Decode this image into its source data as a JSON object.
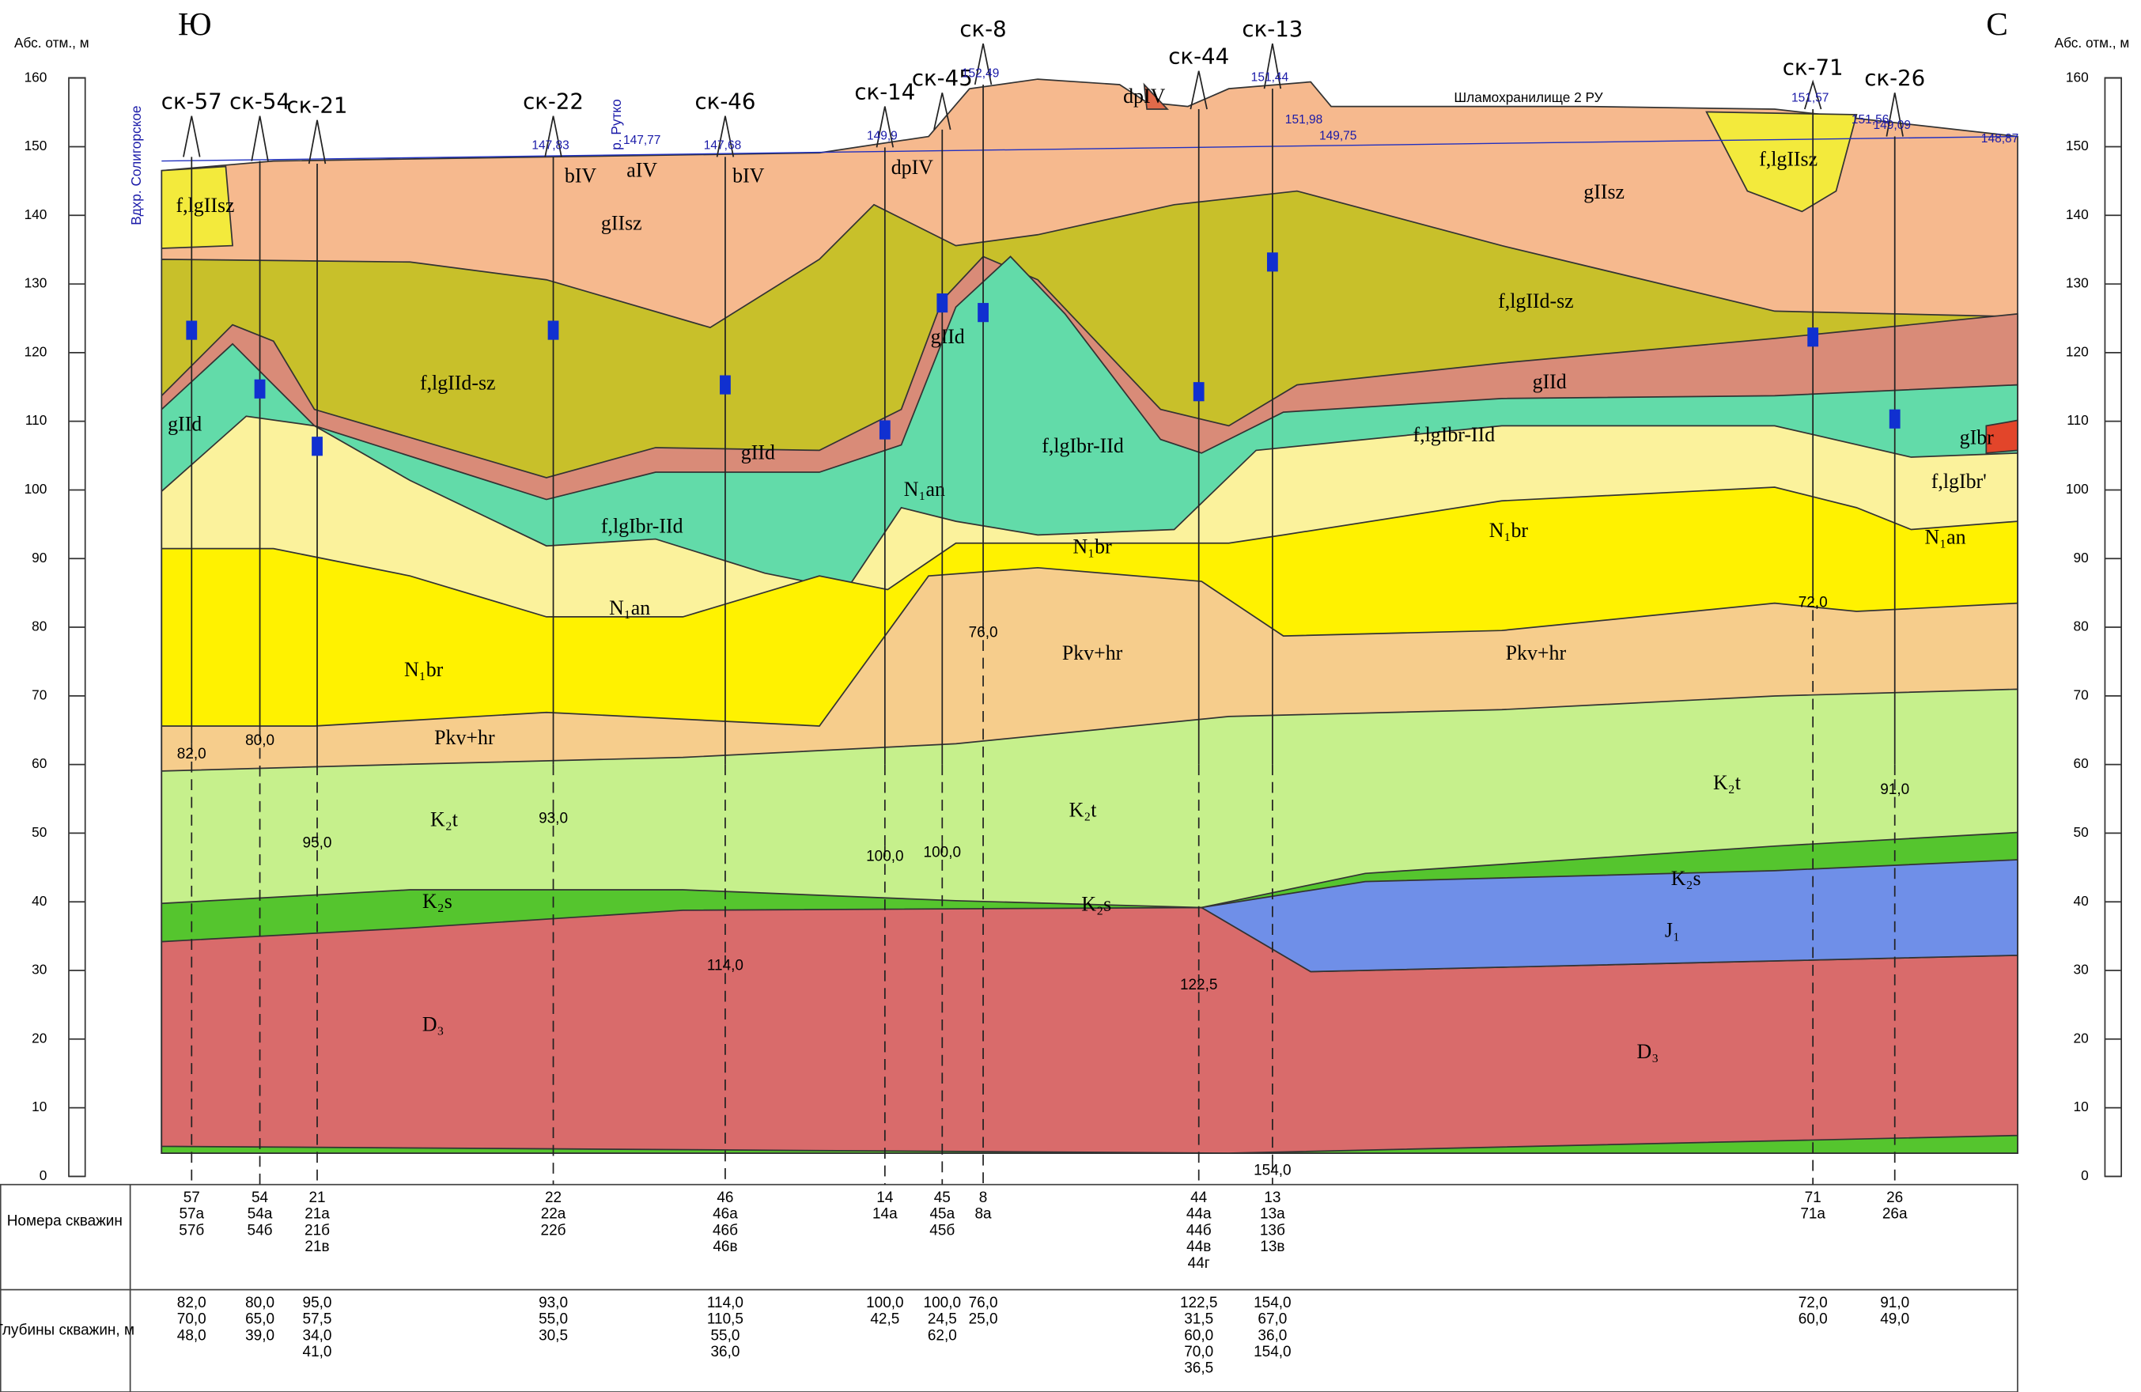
{
  "header": {
    "south": "Ю",
    "north": "С",
    "axis_left": "Абс. отм., м",
    "axis_right": "Абс. отм., м",
    "reservoir": "Шламохранилище 2 РУ",
    "river": "р. Рутко",
    "lake": "Вдхр. Солигорское"
  },
  "axis": {
    "ticks": [
      0,
      10,
      20,
      30,
      40,
      50,
      60,
      70,
      80,
      90,
      100,
      110,
      120,
      130,
      140,
      150,
      160
    ]
  },
  "boreholes": [
    {
      "name": "ск-57",
      "depth": "82,0"
    },
    {
      "name": "ск-54",
      "depth": "80,0"
    },
    {
      "name": "ск-21",
      "depth": "95,0"
    },
    {
      "name": "ск-22",
      "depth": "93,0",
      "elevation": "147,83"
    },
    {
      "name": "ск-46",
      "depth": "114,0",
      "elevation": "147,68"
    },
    {
      "name": "ск-14",
      "depth": "100,0",
      "elevation": "149,9"
    },
    {
      "name": "ск-45",
      "depth": "100,0"
    },
    {
      "name": "ск-8",
      "depth": "76,0",
      "elevation": "152,49"
    },
    {
      "name": "ск-44",
      "depth": "122,5"
    },
    {
      "name": "ск-13",
      "depth": "154,0",
      "elevation": "151,44"
    },
    {
      "name": "ск-71",
      "depth": "72,0",
      "elevation": "151,57"
    },
    {
      "name": "ск-26",
      "depth": "91,0",
      "elevation": "149,09"
    }
  ],
  "extra_elevations": [
    "147,77",
    "151,98",
    "149,75",
    "151,56",
    "148,87"
  ],
  "layers": [
    {
      "label": "gIIsz"
    },
    {
      "label": "f,lgIIsz"
    },
    {
      "label": "f,lgIId-sz"
    },
    {
      "label": "gIId"
    },
    {
      "label": "f,lgIbr-IId"
    },
    {
      "label": "N₁an"
    },
    {
      "label": "N₁br"
    },
    {
      "label": "Pkv+hr"
    },
    {
      "label": "K₂t"
    },
    {
      "label": "K₂s"
    },
    {
      "label": "J₁"
    },
    {
      "label": "D₃"
    },
    {
      "label": "dpIV"
    },
    {
      "label": "bIV"
    },
    {
      "label": "aIV"
    },
    {
      "label": "f,lgIbr'"
    },
    {
      "label": "gIbr"
    }
  ],
  "table": {
    "row_headers": [
      "Номера скважин",
      "Глубины скважин, м"
    ],
    "columns": [
      {
        "numbers": [
          "57",
          "57а",
          "57б"
        ],
        "depths": [
          "82,0",
          "70,0",
          "48,0"
        ]
      },
      {
        "numbers": [
          "54",
          "54а",
          "54б"
        ],
        "depths": [
          "80,0",
          "65,0",
          "39,0"
        ]
      },
      {
        "numbers": [
          "21",
          "21а",
          "21б",
          "21в"
        ],
        "depths": [
          "95,0",
          "57,5",
          "34,0",
          "41,0"
        ]
      },
      {
        "numbers": [
          "22",
          "22а",
          "22б"
        ],
        "depths": [
          "93,0",
          "55,0",
          "30,5"
        ]
      },
      {
        "numbers": [
          "46",
          "46а",
          "46б",
          "46в"
        ],
        "depths": [
          "114,0",
          "110,5",
          "55,0",
          "36,0"
        ]
      },
      {
        "numbers": [
          "14",
          "14а"
        ],
        "depths": [
          "100,0",
          "42,5"
        ]
      },
      {
        "numbers": [
          "45",
          "45а",
          "45б"
        ],
        "depths": [
          "100,0",
          "24,5",
          "62,0"
        ]
      },
      {
        "numbers": [
          "8",
          "8а"
        ],
        "depths": [
          "76,0",
          "25,0"
        ]
      },
      {
        "numbers": [
          "44",
          "44а",
          "44б",
          "44в",
          "44г"
        ],
        "depths": [
          "122,5",
          "31,5",
          "60,0",
          "70,0",
          "36,5"
        ]
      },
      {
        "numbers": [
          "13",
          "13а",
          "13б",
          "13в"
        ],
        "depths": [
          "154,0",
          "67,0",
          "36,0",
          "154,0"
        ]
      },
      {
        "numbers": [
          "71",
          "71а"
        ],
        "depths": [
          "72,0",
          "60,0"
        ]
      },
      {
        "numbers": [
          "26",
          "26а"
        ],
        "depths": [
          "91,0",
          "49,0"
        ]
      }
    ]
  }
}
